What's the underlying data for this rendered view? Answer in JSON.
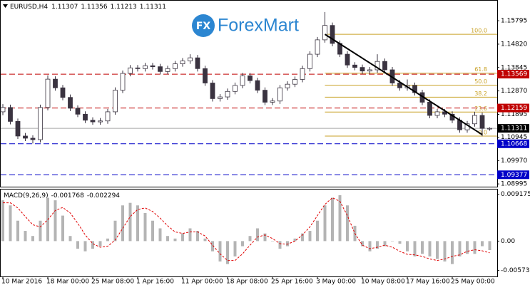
{
  "logo": {
    "icon": "FX",
    "name": "ForexMart"
  },
  "chart_data": [
    {
      "type": "candlestick",
      "title": "EURUSD,H4",
      "ohlc_text": [
        "1.11307",
        "1.11356",
        "1.11213",
        "1.11311"
      ],
      "categories": [
        "10 Mar 2016",
        null,
        null,
        null,
        null,
        null,
        "18 Mar 00:00",
        null,
        null,
        null,
        null,
        null,
        "25 Mar 08:00",
        null,
        null,
        null,
        null,
        null,
        "1 Apr 16:00",
        null,
        null,
        null,
        null,
        null,
        "11 Apr 00:00",
        null,
        null,
        null,
        null,
        null,
        "18 Apr 08:00",
        null,
        null,
        null,
        null,
        null,
        "25 Apr 16:00",
        null,
        null,
        null,
        null,
        null,
        "3 May 00:00",
        null,
        null,
        null,
        null,
        null,
        "10 May 08:00",
        null,
        null,
        null,
        null,
        null,
        "17 May 16:00",
        null,
        null,
        null,
        null,
        null,
        "25 May 00:00",
        null,
        null,
        null,
        null,
        null
      ],
      "open": [
        1.12,
        1.1218,
        1.116,
        1.1099,
        1.109,
        1.1084,
        1.1218,
        1.1336,
        1.13,
        1.126,
        1.1215,
        1.119,
        1.1165,
        1.1158,
        1.1162,
        1.12,
        1.129,
        1.136,
        1.1383,
        1.138,
        1.1392,
        1.1388,
        1.1368,
        1.138,
        1.14,
        1.1412,
        1.1425,
        1.138,
        1.132,
        1.1255,
        1.1262,
        1.1285,
        1.131,
        1.135,
        1.133,
        1.129,
        1.124,
        1.1245,
        1.13,
        1.1315,
        1.1335,
        1.138,
        1.144,
        1.15,
        1.156,
        1.1485,
        1.144,
        1.1395,
        1.1385,
        1.137,
        1.1375,
        1.141,
        1.1375,
        1.132,
        1.13,
        1.131,
        1.128,
        1.124,
        1.1185,
        1.12,
        1.119,
        1.1165,
        1.1125,
        1.115,
        1.1185,
        1.11307
      ],
      "high": [
        1.1232,
        1.123,
        1.1172,
        1.1112,
        1.1102,
        1.123,
        1.1352,
        1.1348,
        1.1312,
        1.1272,
        1.1227,
        1.1202,
        1.1177,
        1.1174,
        1.1212,
        1.1302,
        1.1372,
        1.1395,
        1.1395,
        1.1404,
        1.1404,
        1.14,
        1.1392,
        1.1412,
        1.1424,
        1.144,
        1.1437,
        1.1392,
        1.1332,
        1.1274,
        1.1297,
        1.1322,
        1.1362,
        1.1362,
        1.1342,
        1.1302,
        1.1257,
        1.1312,
        1.1327,
        1.1347,
        1.1392,
        1.1452,
        1.1512,
        1.1616,
        1.1572,
        1.1497,
        1.1452,
        1.1407,
        1.1397,
        1.1387,
        1.144,
        1.1422,
        1.1387,
        1.1332,
        1.1335,
        1.1322,
        1.1292,
        1.1252,
        1.1212,
        1.1212,
        1.1202,
        1.1177,
        1.1162,
        1.12,
        1.1197,
        1.11356
      ],
      "low": [
        1.1186,
        1.1148,
        1.1087,
        1.1078,
        1.1068,
        1.1072,
        1.1206,
        1.1288,
        1.1248,
        1.1203,
        1.1178,
        1.1153,
        1.1146,
        1.1146,
        1.115,
        1.1188,
        1.1278,
        1.1348,
        1.1368,
        1.1368,
        1.1376,
        1.1356,
        1.1356,
        1.1368,
        1.1388,
        1.14,
        1.1368,
        1.1308,
        1.1243,
        1.1243,
        1.125,
        1.1273,
        1.1298,
        1.1318,
        1.1278,
        1.1228,
        1.1228,
        1.1233,
        1.1288,
        1.1303,
        1.1323,
        1.1368,
        1.1428,
        1.1488,
        1.1473,
        1.1428,
        1.1383,
        1.1373,
        1.1358,
        1.1358,
        1.1363,
        1.1363,
        1.1308,
        1.1288,
        1.1288,
        1.1268,
        1.1228,
        1.1173,
        1.1173,
        1.1178,
        1.1153,
        1.1113,
        1.1113,
        1.1138,
        1.1098,
        1.11213
      ],
      "close": [
        1.1218,
        1.116,
        1.1099,
        1.109,
        1.1084,
        1.1218,
        1.1336,
        1.13,
        1.126,
        1.1215,
        1.119,
        1.1165,
        1.1158,
        1.1162,
        1.12,
        1.129,
        1.136,
        1.1383,
        1.138,
        1.1392,
        1.1388,
        1.1368,
        1.138,
        1.14,
        1.1412,
        1.1425,
        1.138,
        1.132,
        1.1255,
        1.1262,
        1.1285,
        1.131,
        1.135,
        1.133,
        1.129,
        1.124,
        1.1245,
        1.13,
        1.1315,
        1.1335,
        1.138,
        1.144,
        1.15,
        1.156,
        1.1485,
        1.144,
        1.1395,
        1.1385,
        1.137,
        1.1375,
        1.141,
        1.1375,
        1.132,
        1.13,
        1.131,
        1.128,
        1.124,
        1.1185,
        1.12,
        1.119,
        1.1165,
        1.1125,
        1.115,
        1.1185,
        1.1131,
        1.11311
      ],
      "bull_color": "#ffffff",
      "bear_color": "#3a3340",
      "ylim": [
        1.0888,
        1.1663
      ],
      "yticks": [
        1.15795,
        {
          "value": 1.1482,
          "label": "1.14820"
        },
        1.13845,
        {
          "value": 1.1287,
          "label": "1.12870"
        },
        1.11895,
        1.10945,
        {
          "value": 1.0997,
          "label": "1.09970"
        },
        1.08995
      ],
      "levels": [
        {
          "value": 1.13569,
          "color": "#c00000",
          "style": "dashed"
        },
        {
          "value": 1.12159,
          "color": "#c00000",
          "style": "dashed"
        },
        {
          "value": 1.11311,
          "color": "#000000",
          "style": "solid"
        },
        {
          "value": 1.10668,
          "color": "#0000c8",
          "style": "dashed"
        },
        {
          "value": 1.09377,
          "color": "#0000c8",
          "style": "dashed"
        }
      ],
      "trendline": {
        "x": [
          43,
          64
        ],
        "y": [
          1.1523,
          1.1105
        ],
        "color": "#000000"
      },
      "fibonacci": {
        "color": "#c9a227",
        "levels": [
          {
            "value": 1.1523,
            "label": "100.0"
          },
          {
            "value": 1.1361,
            "label": "61.8"
          },
          {
            "value": 1.1311,
            "label": "50.0"
          },
          {
            "value": 1.1261,
            "label": "38.2"
          },
          {
            "value": 1.1199,
            "label": "23.6"
          },
          {
            "value": 1.1099,
            "label": "0.0"
          }
        ]
      }
    },
    {
      "type": "macd",
      "title": "MACD(9,26,9)",
      "value_text": [
        "-0.001768",
        "-0.002294"
      ],
      "histogram": {
        "color": "#b4b4b4",
        "values": [
          0.008,
          0.007,
          0.004,
          0.002,
          0.001,
          0.004,
          0.0085,
          0.008,
          0.005,
          0.001,
          -0.0015,
          -0.002,
          -0.0015,
          -0.001,
          0.0005,
          0.004,
          0.007,
          0.0075,
          0.007,
          0.0055,
          0.004,
          0.0025,
          0.001,
          0.0005,
          0.0015,
          0.0025,
          0.002,
          0.0005,
          -0.002,
          -0.004,
          -0.0045,
          -0.003,
          -0.001,
          0.001,
          0.0025,
          0.0015,
          0.0,
          -0.0015,
          -0.001,
          0.0005,
          0.0015,
          0.002,
          0.004,
          0.007,
          0.0085,
          0.009,
          0.007,
          0.003,
          -0.001,
          -0.002,
          -0.0015,
          -0.001,
          0.0,
          -0.0005,
          -0.002,
          -0.003,
          -0.0025,
          -0.003,
          -0.0035,
          -0.004,
          -0.0045,
          -0.003,
          -0.0025,
          -0.0025,
          -0.001,
          -0.001768
        ]
      },
      "signal": {
        "color": "#e00000",
        "values": [
          0.0075,
          0.0075,
          0.0065,
          0.0048,
          0.0032,
          0.0028,
          0.0042,
          0.006,
          0.0066,
          0.0055,
          0.0035,
          0.0012,
          -0.0005,
          -0.0012,
          -0.001,
          0.0002,
          0.0025,
          0.0048,
          0.0062,
          0.0065,
          0.0058,
          0.0045,
          0.003,
          0.0018,
          0.0015,
          0.0018,
          0.0018,
          0.001,
          -0.0008,
          -0.0025,
          -0.0038,
          -0.0038,
          -0.0025,
          -0.0008,
          0.0008,
          0.0012,
          0.0005,
          -0.0005,
          -0.0006,
          0.0,
          0.0012,
          0.0028,
          0.005,
          0.0072,
          0.0085,
          0.0078,
          0.005,
          0.0015,
          -0.0008,
          -0.0015,
          -0.0012,
          -0.0008,
          -0.0012,
          -0.002,
          -0.0026,
          -0.0027,
          -0.003,
          -0.0035,
          -0.0038,
          -0.0035,
          -0.003,
          -0.0027,
          -0.002,
          -0.0017,
          -0.0019,
          -0.002294
        ]
      },
      "ylim": [
        -0.00693,
        0.01011
      ],
      "yticks": [
        0.009175,
        {
          "value": 0,
          "label": "0.00"
        },
        -0.00573
      ]
    }
  ]
}
